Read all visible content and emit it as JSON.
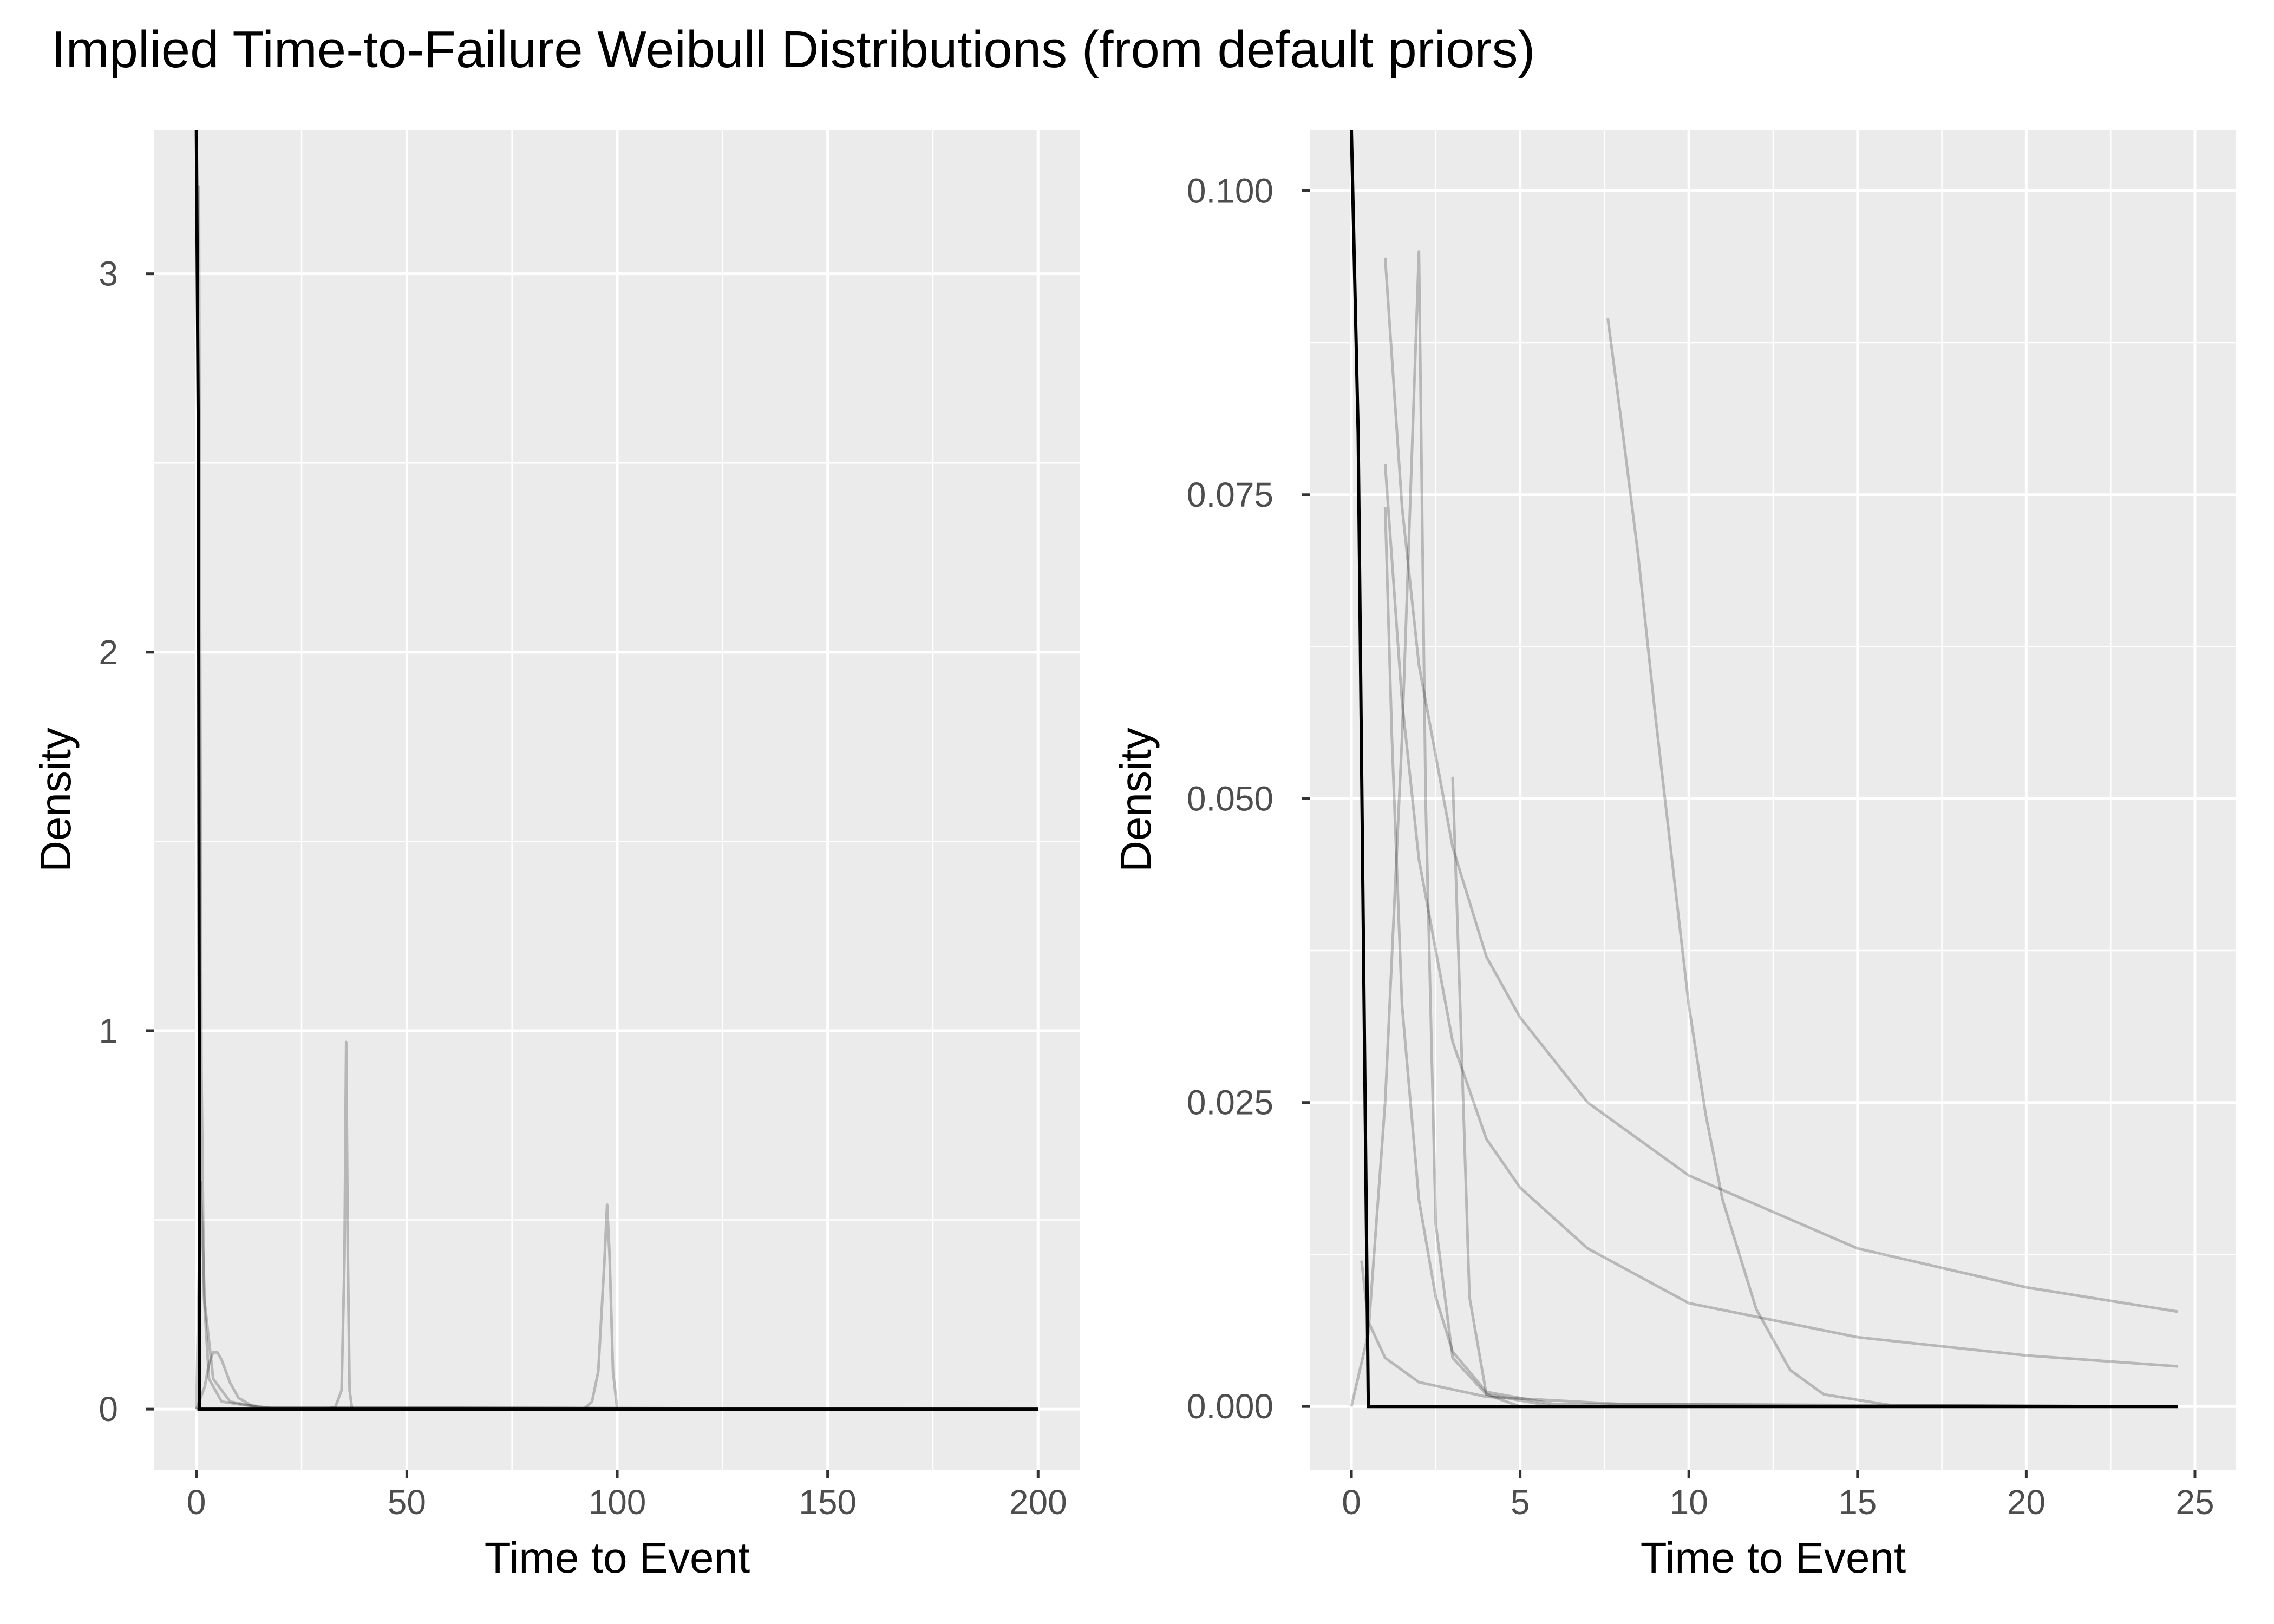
{
  "title": "Implied Time-to-Failure Weibull Distributions (from default priors)",
  "chart_data": [
    {
      "type": "line",
      "xlabel": "Time to Event",
      "ylabel": "Density",
      "xlim": [
        -10,
        210
      ],
      "ylim": [
        -0.16,
        3.38
      ],
      "x_ticks": [
        0,
        50,
        100,
        150,
        200
      ],
      "x_tick_labels": [
        "0",
        "50",
        "100",
        "150",
        "200"
      ],
      "y_ticks": [
        0,
        1,
        2,
        3
      ],
      "y_tick_labels": [
        "0",
        "1",
        "2",
        "3"
      ],
      "grid": true,
      "series": [
        {
          "points": [
            [
              0.3,
              3.23
            ],
            [
              0.6,
              3.23
            ],
            [
              0.9,
              2.0
            ],
            [
              1.2,
              0.9
            ],
            [
              1.8,
              0.3
            ],
            [
              3,
              0.08
            ],
            [
              6,
              0.02
            ],
            [
              15,
              0.005
            ],
            [
              200,
              0
            ]
          ]
        },
        {
          "points": [
            [
              0,
              0
            ],
            [
              1,
              0.6
            ],
            [
              2,
              0.28
            ],
            [
              4,
              0.08
            ],
            [
              8,
              0.02
            ],
            [
              15,
              0.005
            ],
            [
              200,
              0
            ]
          ]
        },
        {
          "points": [
            [
              0,
              0
            ],
            [
              2,
              0.06
            ],
            [
              3,
              0.12
            ],
            [
              4,
              0.15
            ],
            [
              5,
              0.15
            ],
            [
              6,
              0.13
            ],
            [
              8,
              0.07
            ],
            [
              10,
              0.03
            ],
            [
              13,
              0.01
            ],
            [
              18,
              0.002
            ],
            [
              200,
              0
            ]
          ]
        },
        {
          "points": [
            [
              0,
              0
            ],
            [
              30,
              0
            ],
            [
              33,
              0.005
            ],
            [
              34.5,
              0.05
            ],
            [
              35.2,
              0.4
            ],
            [
              35.6,
              0.97
            ],
            [
              36,
              0.4
            ],
            [
              36.4,
              0.05
            ],
            [
              37,
              0
            ],
            [
              200,
              0
            ]
          ]
        },
        {
          "points": [
            [
              0,
              0
            ],
            [
              92,
              0
            ],
            [
              94,
              0.02
            ],
            [
              95.5,
              0.1
            ],
            [
              97,
              0.4
            ],
            [
              97.6,
              0.54
            ],
            [
              98.2,
              0.4
            ],
            [
              99,
              0.1
            ],
            [
              100,
              0
            ],
            [
              200,
              0
            ]
          ]
        }
      ],
      "base_line": {
        "points": [
          [
            0,
            3.38
          ],
          [
            0.5,
            2.5
          ],
          [
            0.8,
            0
          ],
          [
            200,
            0
          ]
        ]
      }
    },
    {
      "type": "line",
      "xlabel": "Time to Event",
      "ylabel": "Density",
      "xlim": [
        -1.22,
        26.22
      ],
      "ylim": [
        -0.0052,
        0.105
      ],
      "x_ticks": [
        0,
        5,
        10,
        15,
        20,
        25
      ],
      "x_tick_labels": [
        "0",
        "5",
        "10",
        "15",
        "20",
        "25"
      ],
      "y_ticks": [
        0,
        0.025,
        0.05,
        0.075,
        0.1
      ],
      "y_tick_labels": [
        "0.000",
        "0.025",
        "0.050",
        "0.075",
        "0.100"
      ],
      "grid": true,
      "series": [
        {
          "points": [
            [
              1.0,
              0.0945
            ],
            [
              1.5,
              0.074
            ],
            [
              2,
              0.061
            ],
            [
              3,
              0.046
            ],
            [
              4,
              0.037
            ],
            [
              5,
              0.032
            ],
            [
              7,
              0.025
            ],
            [
              10,
              0.019
            ],
            [
              15,
              0.013
            ],
            [
              20,
              0.0098
            ],
            [
              24.5,
              0.0078
            ]
          ]
        },
        {
          "points": [
            [
              1.0,
              0.0775
            ],
            [
              1.5,
              0.058
            ],
            [
              2,
              0.045
            ],
            [
              3,
              0.03
            ],
            [
              4,
              0.022
            ],
            [
              5,
              0.018
            ],
            [
              7,
              0.013
            ],
            [
              10,
              0.0085
            ],
            [
              15,
              0.0057
            ],
            [
              20,
              0.0042
            ],
            [
              24.5,
              0.0033
            ]
          ]
        },
        {
          "points": [
            [
              0,
              0
            ],
            [
              0.5,
              0.006
            ],
            [
              1,
              0.025
            ],
            [
              1.5,
              0.055
            ],
            [
              2,
              0.095
            ],
            [
              2.2,
              0.05
            ],
            [
              2.5,
              0.015
            ],
            [
              3,
              0.004
            ],
            [
              4,
              0.001
            ],
            [
              6,
              0
            ],
            [
              24.5,
              0
            ]
          ]
        },
        {
          "points": [
            [
              1.0,
              0.074
            ],
            [
              1.2,
              0.055
            ],
            [
              1.5,
              0.033
            ],
            [
              2,
              0.017
            ],
            [
              2.5,
              0.009
            ],
            [
              3,
              0.0045
            ],
            [
              4,
              0.0012
            ],
            [
              6,
              0.0002
            ],
            [
              24.5,
              0
            ]
          ]
        },
        {
          "points": [
            [
              3.0,
              0.0518
            ],
            [
              3.2,
              0.035
            ],
            [
              3.5,
              0.009
            ],
            [
              4,
              0.001
            ],
            [
              5,
              0
            ],
            [
              24.5,
              0
            ]
          ]
        },
        {
          "points": [
            [
              7.6,
              0.0895
            ],
            [
              8,
              0.081
            ],
            [
              8.5,
              0.07
            ],
            [
              9,
              0.057
            ],
            [
              9.5,
              0.045
            ],
            [
              10,
              0.033
            ],
            [
              10.5,
              0.024
            ],
            [
              11,
              0.017
            ],
            [
              12,
              0.008
            ],
            [
              13,
              0.003
            ],
            [
              14,
              0.001
            ],
            [
              16,
              0.0001
            ],
            [
              24.5,
              0
            ]
          ]
        },
        {
          "points": [
            [
              0.3,
              0.012
            ],
            [
              0.5,
              0.007
            ],
            [
              1,
              0.004
            ],
            [
              2,
              0.002
            ],
            [
              4,
              0.0008
            ],
            [
              8,
              0.0002
            ],
            [
              24.5,
              0
            ]
          ]
        }
      ],
      "base_line": {
        "points": [
          [
            0,
            0.105
          ],
          [
            0.2,
            0.08
          ],
          [
            0.35,
            0.04
          ],
          [
            0.5,
            0
          ],
          [
            24.5,
            0
          ]
        ]
      }
    }
  ]
}
